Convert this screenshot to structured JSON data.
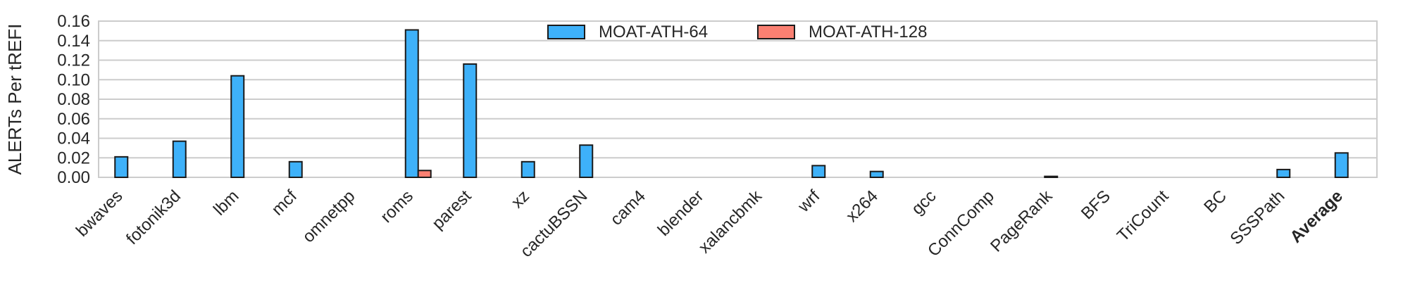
{
  "chart_data": {
    "type": "bar",
    "title": "",
    "xlabel": "",
    "ylabel": "ALERTs Per tREFI",
    "ylim": [
      0,
      0.16
    ],
    "yticks": [
      "0.00",
      "0.02",
      "0.04",
      "0.06",
      "0.08",
      "0.10",
      "0.12",
      "0.14",
      "0.16"
    ],
    "grid": true,
    "legend_position": "top-center",
    "categories": [
      "bwaves",
      "fotonik3d",
      "lbm",
      "mcf",
      "omnetpp",
      "roms",
      "parest",
      "xz",
      "cactuBSSN",
      "cam4",
      "blender",
      "xalancbmk",
      "wrf",
      "x264",
      "gcc",
      "ConnComp",
      "PageRank",
      "BFS",
      "TriCount",
      "BC",
      "SSSPath",
      "Average"
    ],
    "bold_categories": [
      "Average"
    ],
    "series": [
      {
        "name": "MOAT-ATH-64",
        "color": "#3eb1f9",
        "values": [
          0.021,
          0.037,
          0.104,
          0.016,
          0.0,
          0.151,
          0.116,
          0.016,
          0.033,
          0.0,
          0.0,
          0.0,
          0.012,
          0.006,
          0.0,
          0.0,
          0.001,
          0.0,
          0.0,
          0.0,
          0.008,
          0.025
        ]
      },
      {
        "name": "MOAT-ATH-128",
        "color": "#fa8072",
        "values": [
          0.0,
          0.0,
          0.0,
          0.0,
          0.0,
          0.007,
          0.0,
          0.0,
          0.0,
          0.0,
          0.0,
          0.0,
          0.0,
          0.0,
          0.0,
          0.0,
          0.0,
          0.0,
          0.0,
          0.0,
          0.0,
          0.0
        ]
      }
    ]
  }
}
